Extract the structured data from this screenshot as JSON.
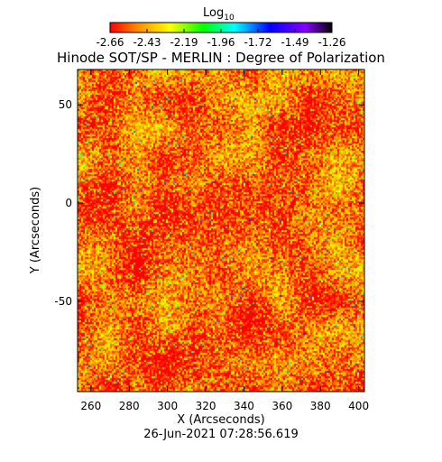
{
  "chart_data": {
    "type": "heatmap",
    "title": "Hinode SOT/SP - MERLIN : Degree of Polarization",
    "xlabel": "X (Arcseconds)",
    "ylabel": "Y (Arcseconds)",
    "xlim": [
      253,
      403
    ],
    "ylim": [
      -96,
      68
    ],
    "x_ticks": [
      260,
      280,
      300,
      320,
      340,
      360,
      380,
      400
    ],
    "y_ticks": [
      50,
      0,
      -50
    ],
    "colorbar": {
      "label_base": "Log",
      "label_sub": "10",
      "ticks": [
        "-2.66",
        "-2.43",
        "-2.19",
        "-1.96",
        "-1.72",
        "-1.49",
        "-1.26"
      ],
      "range": [
        -2.66,
        -1.26
      ],
      "colormap": [
        "#ff0000",
        "#ff8800",
        "#ffff00",
        "#00ff00",
        "#00ffff",
        "#0000ff",
        "#8800ff",
        "#000000"
      ]
    },
    "value_distribution": {
      "dominant": -2.55,
      "secondary": -2.3,
      "sparse_high": -1.85
    },
    "timestamp": "26-Jun-2021 07:28:56.619"
  }
}
